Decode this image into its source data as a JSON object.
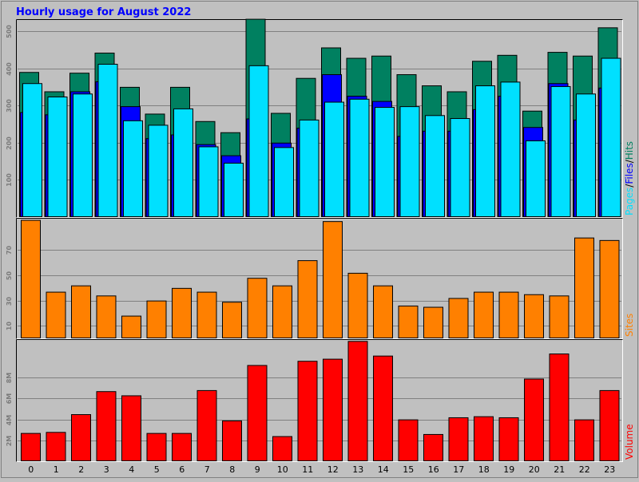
{
  "title": "Hourly usage for August 2022",
  "colors": {
    "background": "#c0c0c0",
    "title": "#0000ff",
    "hits": "#008060",
    "files": "#0000ff",
    "pages": "#00e0ff",
    "sites": "#ff8000",
    "volume": "#ff0000",
    "grid": "#808080"
  },
  "side_labels": {
    "pages": "Pages",
    "sep1": "/",
    "files": "Files",
    "sep2": "/",
    "hits": "Hits",
    "sites": "Sites",
    "volume": "Volume"
  },
  "chart_data": [
    {
      "type": "bar",
      "name": "hits-files-pages",
      "categories": [
        "0",
        "1",
        "2",
        "3",
        "4",
        "5",
        "6",
        "7",
        "8",
        "9",
        "10",
        "11",
        "12",
        "13",
        "14",
        "15",
        "16",
        "17",
        "18",
        "19",
        "20",
        "21",
        "22",
        "23"
      ],
      "ylim": [
        0,
        530
      ],
      "yticks": [
        100,
        200,
        300,
        400,
        500
      ],
      "ytick_labels": [
        "100",
        "200",
        "300",
        "400",
        "500"
      ],
      "series": [
        {
          "name": "Hits",
          "values": [
            390,
            338,
            388,
            442,
            350,
            278,
            350,
            258,
            228,
            533,
            280,
            374,
            456,
            428,
            434,
            384,
            354,
            338,
            420,
            436,
            286,
            444,
            434,
            510
          ]
        },
        {
          "name": "Files",
          "values": [
            282,
            276,
            338,
            365,
            298,
            212,
            222,
            196,
            166,
            265,
            200,
            240,
            384,
            326,
            312,
            218,
            232,
            232,
            290,
            326,
            242,
            360,
            262,
            348
          ]
        },
        {
          "name": "Pages",
          "values": [
            360,
            324,
            332,
            412,
            260,
            248,
            292,
            190,
            146,
            408,
            188,
            262,
            310,
            318,
            296,
            298,
            274,
            266,
            354,
            364,
            206,
            352,
            332,
            428
          ]
        }
      ]
    },
    {
      "type": "bar",
      "name": "sites",
      "categories": [
        "0",
        "1",
        "2",
        "3",
        "4",
        "5",
        "6",
        "7",
        "8",
        "9",
        "10",
        "11",
        "12",
        "13",
        "14",
        "15",
        "16",
        "17",
        "18",
        "19",
        "20",
        "21",
        "22",
        "23"
      ],
      "ylim": [
        0,
        95
      ],
      "yticks": [
        10,
        30,
        50,
        70
      ],
      "ytick_labels": [
        "10",
        "30",
        "50",
        "70"
      ],
      "series": [
        {
          "name": "Sites",
          "values": [
            94,
            37,
            42,
            34,
            18,
            30,
            40,
            37,
            29,
            48,
            42,
            62,
            93,
            52,
            42,
            26,
            25,
            32,
            37,
            37,
            35,
            34,
            80,
            78
          ]
        }
      ]
    },
    {
      "type": "bar",
      "name": "volume",
      "categories": [
        "0",
        "1",
        "2",
        "3",
        "4",
        "5",
        "6",
        "7",
        "8",
        "9",
        "10",
        "11",
        "12",
        "13",
        "14",
        "15",
        "16",
        "17",
        "18",
        "19",
        "20",
        "21",
        "22",
        "23"
      ],
      "ylim": [
        0,
        11.6
      ],
      "yticks": [
        2,
        4,
        6,
        8
      ],
      "ytick_labels": [
        "2M",
        "4M",
        "6M",
        "8M"
      ],
      "series": [
        {
          "name": "Volume",
          "values": [
            2.7,
            2.8,
            4.5,
            6.7,
            6.3,
            2.7,
            2.7,
            6.8,
            3.9,
            9.2,
            2.4,
            9.6,
            9.8,
            11.5,
            10.1,
            4.0,
            2.6,
            4.2,
            4.3,
            4.2,
            7.9,
            10.3,
            4.0,
            6.8
          ]
        }
      ]
    }
  ]
}
